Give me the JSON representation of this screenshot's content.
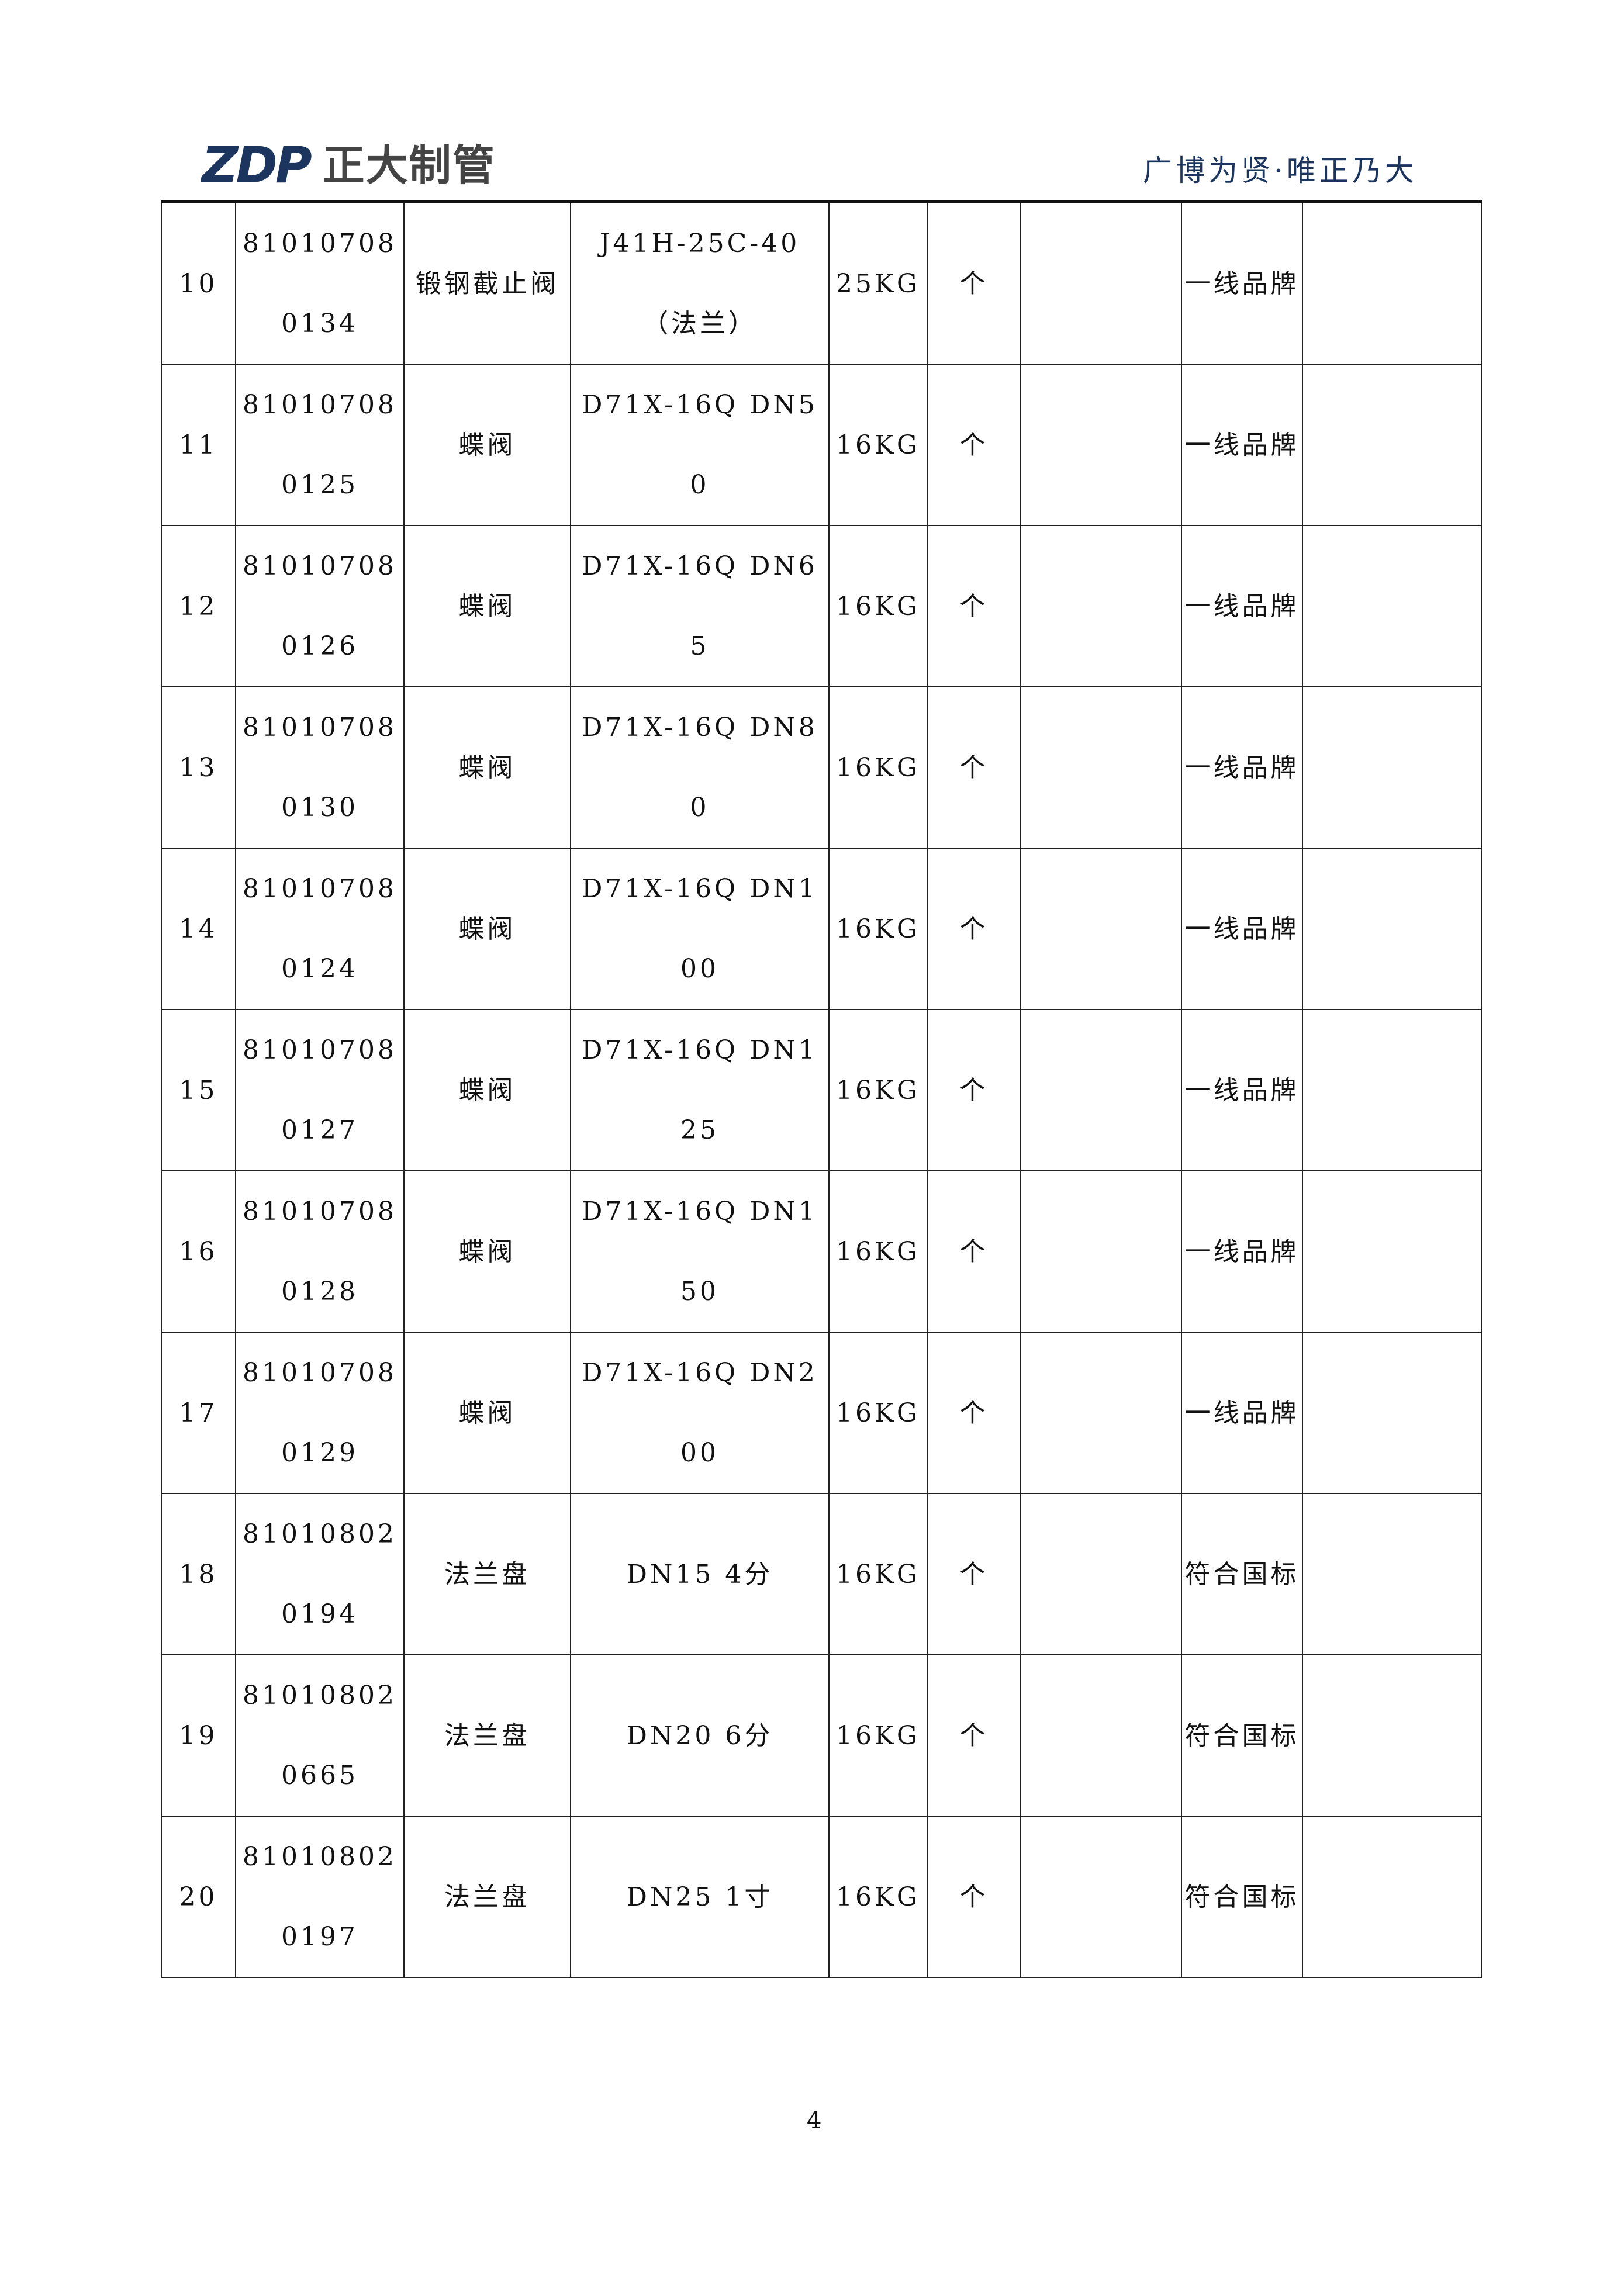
{
  "header": {
    "logo_mark": "ZDP",
    "logo_text": "正大制管",
    "slogan": "广博为贤·唯正乃大",
    "brand_color": "#1b355f"
  },
  "rows": [
    {
      "no": "10",
      "code": "810107080134",
      "name": "锻钢截止阀",
      "spec": "J41H-25C-40（法兰）",
      "pressure": "25KG",
      "unit": "个",
      "col7": "",
      "brand": "一线品牌",
      "col9": ""
    },
    {
      "no": "11",
      "code": "810107080125",
      "name": "蝶阀",
      "spec": "D71X-16Q DN50",
      "pressure": "16KG",
      "unit": "个",
      "col7": "",
      "brand": "一线品牌",
      "col9": ""
    },
    {
      "no": "12",
      "code": "810107080126",
      "name": "蝶阀",
      "spec": "D71X-16Q DN65",
      "pressure": "16KG",
      "unit": "个",
      "col7": "",
      "brand": "一线品牌",
      "col9": ""
    },
    {
      "no": "13",
      "code": "810107080130",
      "name": "蝶阀",
      "spec": "D71X-16Q DN80",
      "pressure": "16KG",
      "unit": "个",
      "col7": "",
      "brand": "一线品牌",
      "col9": ""
    },
    {
      "no": "14",
      "code": "810107080124",
      "name": "蝶阀",
      "spec": "D71X-16Q DN100",
      "pressure": "16KG",
      "unit": "个",
      "col7": "",
      "brand": "一线品牌",
      "col9": ""
    },
    {
      "no": "15",
      "code": "810107080127",
      "name": "蝶阀",
      "spec": "D71X-16Q DN125",
      "pressure": "16KG",
      "unit": "个",
      "col7": "",
      "brand": "一线品牌",
      "col9": ""
    },
    {
      "no": "16",
      "code": "810107080128",
      "name": "蝶阀",
      "spec": "D71X-16Q DN150",
      "pressure": "16KG",
      "unit": "个",
      "col7": "",
      "brand": "一线品牌",
      "col9": ""
    },
    {
      "no": "17",
      "code": "810107080129",
      "name": "蝶阀",
      "spec": "D71X-16Q DN200",
      "pressure": "16KG",
      "unit": "个",
      "col7": "",
      "brand": "一线品牌",
      "col9": ""
    },
    {
      "no": "18",
      "code": "810108020194",
      "name": "法兰盘",
      "spec": "DN15 4分",
      "pressure": "16KG",
      "unit": "个",
      "col7": "",
      "brand": "符合国标",
      "col9": ""
    },
    {
      "no": "19",
      "code": "810108020665",
      "name": "法兰盘",
      "spec": "DN20  6分",
      "pressure": "16KG",
      "unit": "个",
      "col7": "",
      "brand": "符合国标",
      "col9": ""
    },
    {
      "no": "20",
      "code": "810108020197",
      "name": "法兰盘",
      "spec": "DN25 1寸",
      "pressure": "16KG",
      "unit": "个",
      "col7": "",
      "brand": "符合国标",
      "col9": ""
    }
  ],
  "footer": {
    "page_number": "4"
  }
}
